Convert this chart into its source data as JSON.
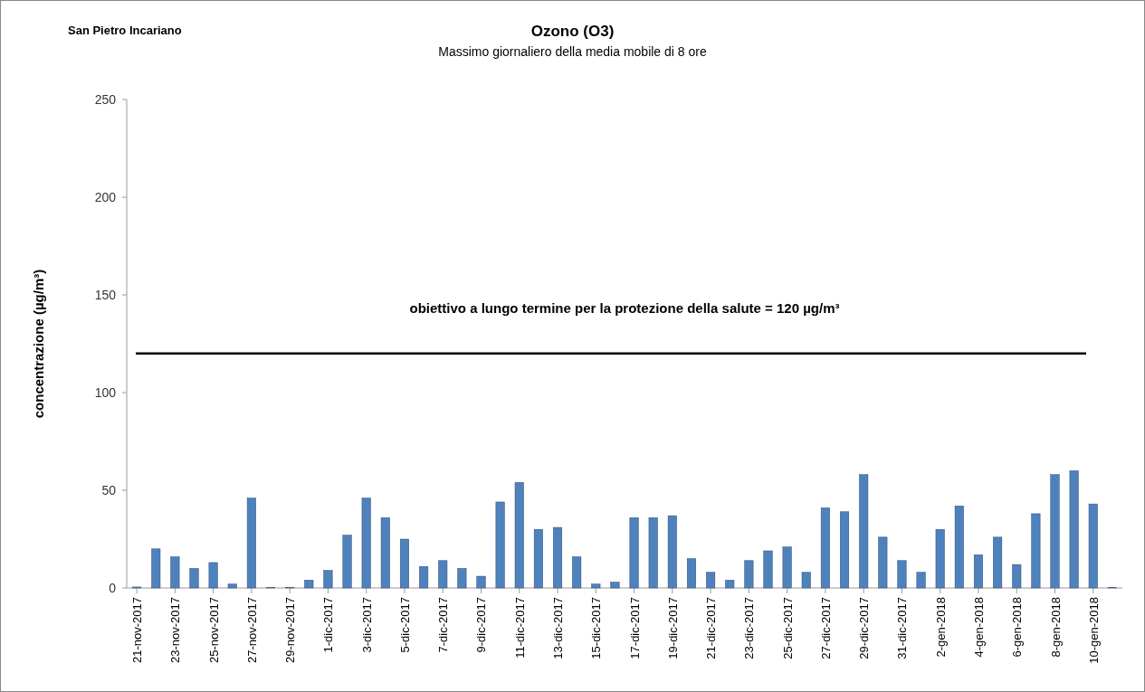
{
  "chart_data": {
    "type": "bar",
    "title": "Ozono (O3)",
    "subtitle": "Massimo giornaliero della media mobile di 8 ore",
    "ylabel": "concentrazione (µg/m³)",
    "annotations": [
      "San Pietro Incariano"
    ],
    "categories": [
      "21-nov-2017",
      null,
      "23-nov-2017",
      null,
      "25-nov-2017",
      null,
      "27-nov-2017",
      null,
      "29-nov-2017",
      null,
      "1-dic-2017",
      null,
      "3-dic-2017",
      null,
      "5-dic-2017",
      null,
      "7-dic-2017",
      null,
      "9-dic-2017",
      null,
      "11-dic-2017",
      null,
      "13-dic-2017",
      null,
      "15-dic-2017",
      null,
      "17-dic-2017",
      null,
      "19-dic-2017",
      null,
      "21-dic-2017",
      null,
      "23-dic-2017",
      null,
      "25-dic-2017",
      null,
      "27-dic-2017",
      null,
      "29-dic-2017",
      null,
      "31-dic-2017",
      null,
      "2-gen-2018",
      null,
      "4-gen-2018",
      null,
      "6-gen-2018",
      null,
      "8-gen-2018",
      null,
      "10-gen-2018",
      null
    ],
    "values": [
      0.5,
      20,
      16,
      10,
      13,
      2,
      46,
      0.3,
      0.3,
      4,
      9,
      27,
      46,
      36,
      25,
      11,
      14,
      10,
      6,
      44,
      54,
      30,
      31,
      16,
      2,
      3,
      36,
      36,
      37,
      15,
      8,
      4,
      14,
      19,
      21,
      8,
      41,
      39,
      58,
      26,
      14,
      8,
      30,
      42,
      17,
      26,
      12,
      38,
      58,
      60,
      43,
      0.3
    ],
    "color": "#4f81bd",
    "ylim": [
      0,
      250
    ],
    "yticks": [
      0,
      50,
      100,
      150,
      200,
      250
    ],
    "grid": false,
    "ref_lines": [
      {
        "axis": "y",
        "value": 120,
        "label": "obiettivo a lungo termine per la protezione della salute = 120 µg/m³",
        "color": "#000000"
      }
    ]
  }
}
